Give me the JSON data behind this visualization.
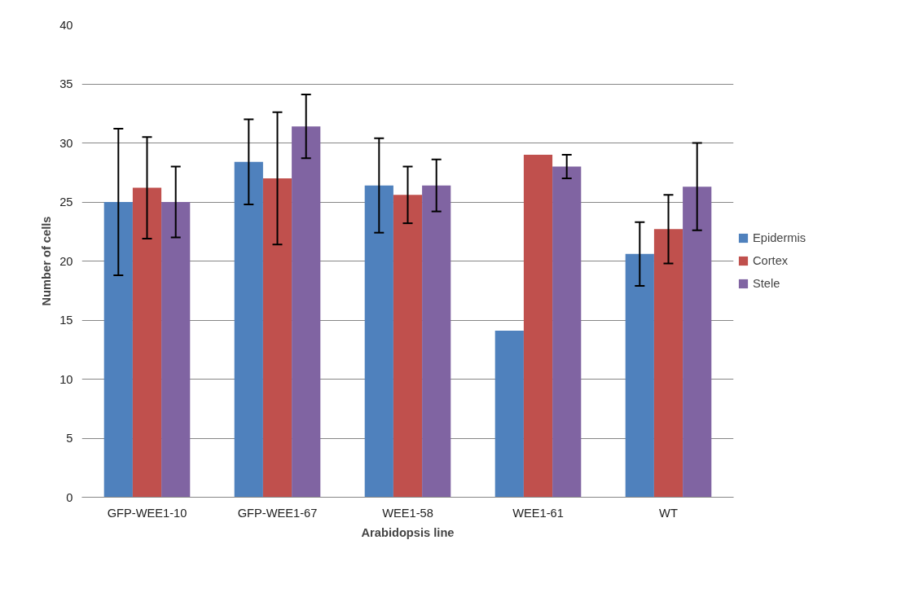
{
  "chart_data": {
    "type": "bar",
    "xlabel": "Arabidopsis line",
    "ylabel": "Number of cells",
    "categories": [
      "GFP-WEE1-10",
      "GFP-WEE1-67",
      "WEE1-58",
      "WEE1-61",
      "WT"
    ],
    "series": [
      {
        "name": "Epidermis",
        "color": "#4f81bd",
        "values": [
          25,
          28.4,
          26.4,
          14.1,
          20.6
        ],
        "errors": [
          6.2,
          3.6,
          4,
          null,
          2.7
        ]
      },
      {
        "name": "Cortex",
        "color": "#c0504d",
        "values": [
          26.2,
          27,
          25.6,
          29,
          22.7
        ],
        "errors": [
          4.3,
          5.6,
          2.4,
          null,
          2.9
        ]
      },
      {
        "name": "Stele",
        "color": "#8064a2",
        "values": [
          25,
          31.4,
          26.4,
          28,
          26.3
        ],
        "errors": [
          3,
          2.7,
          2.2,
          1,
          3.7
        ]
      }
    ],
    "ylim": [
      0,
      40
    ],
    "yticks": [
      0,
      5,
      10,
      15,
      20,
      25,
      30,
      35,
      40
    ],
    "grid": "y",
    "legend": "right"
  }
}
